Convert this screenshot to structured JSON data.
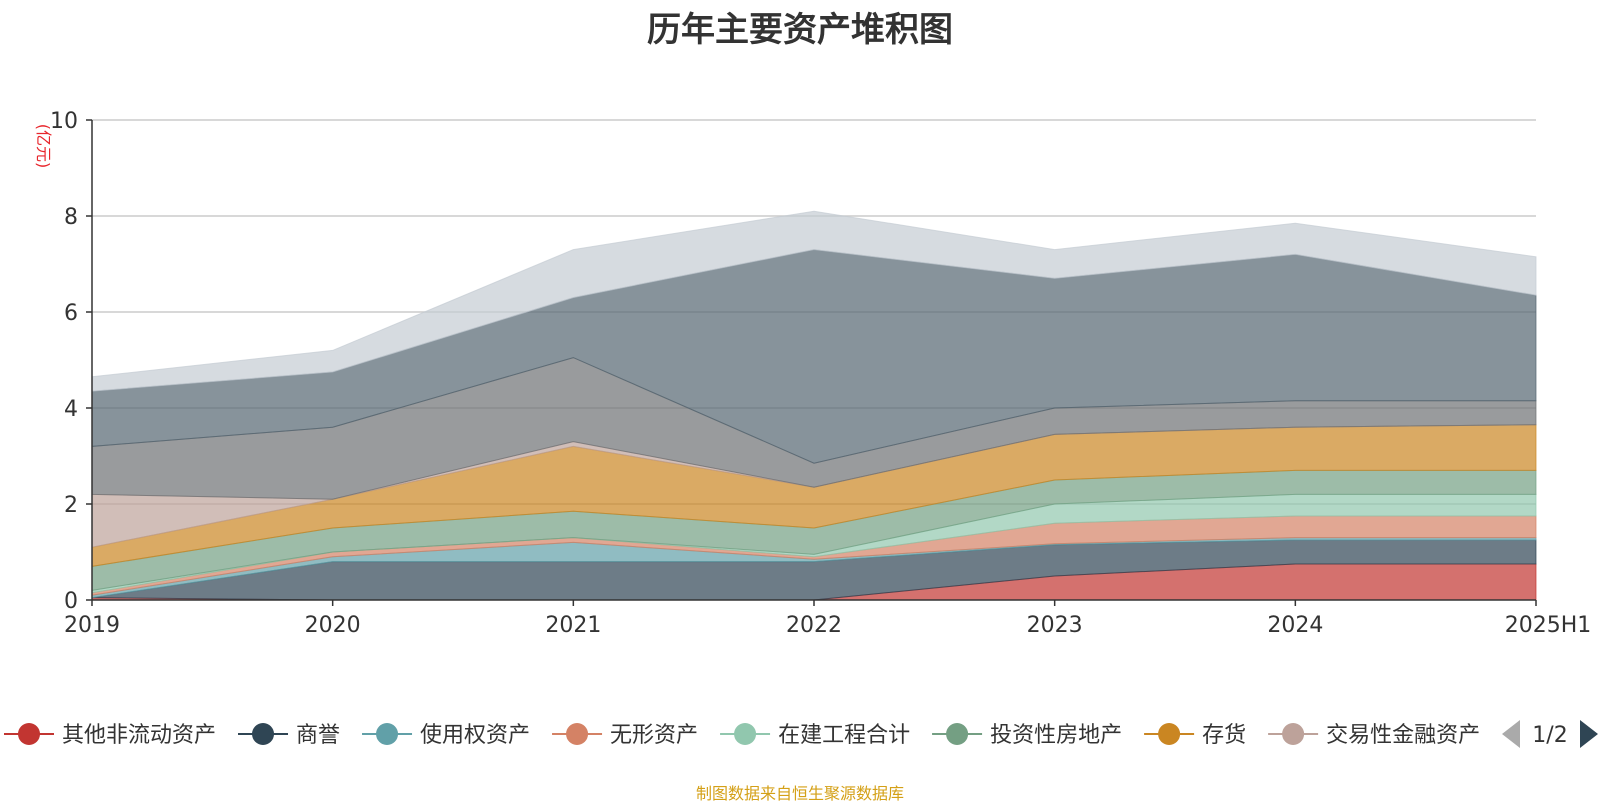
{
  "chart_data": {
    "type": "area",
    "stacked": true,
    "title": "历年主要资产堆积图",
    "ylabel": "(亿元)",
    "ylim": [
      0,
      10
    ],
    "yticks": [
      0,
      2,
      4,
      6,
      8,
      10
    ],
    "categories": [
      "2019",
      "2020",
      "2021",
      "2022",
      "2023",
      "2024",
      "2025H1"
    ],
    "grid": true,
    "legend_position": "bottom",
    "series": [
      {
        "name": "其他非流动资产",
        "color": "#c23531",
        "values": [
          0.05,
          0.0,
          0.0,
          0.0,
          0.5,
          0.75,
          0.75
        ]
      },
      {
        "name": "商誉",
        "color": "#2f4554",
        "values": [
          0.0,
          0.8,
          0.8,
          0.8,
          0.65,
          0.5,
          0.5
        ]
      },
      {
        "name": "使用权资产",
        "color": "#61a0a8",
        "values": [
          0.05,
          0.1,
          0.4,
          0.05,
          0.02,
          0.05,
          0.05
        ]
      },
      {
        "name": "无形资产",
        "color": "#d48265",
        "values": [
          0.05,
          0.1,
          0.1,
          0.05,
          0.43,
          0.45,
          0.45
        ]
      },
      {
        "name": "在建工程合计",
        "color": "#91c7ae",
        "values": [
          0.05,
          0.0,
          0.0,
          0.05,
          0.4,
          0.45,
          0.45
        ]
      },
      {
        "name": "投资性房地产",
        "color": "#749f83",
        "values": [
          0.5,
          0.5,
          0.55,
          0.55,
          0.5,
          0.5,
          0.5
        ]
      },
      {
        "name": "存货",
        "color": "#ca8622",
        "values": [
          0.4,
          0.6,
          1.35,
          0.85,
          0.95,
          0.9,
          0.95
        ]
      },
      {
        "name": "交易性金融资产",
        "color": "#bda29a",
        "values": [
          1.1,
          0.0,
          0.1,
          0.0,
          0.0,
          0.0,
          0.0
        ]
      },
      {
        "name": "",
        "color": "#6e7074",
        "values": [
          1.0,
          1.5,
          1.75,
          0.5,
          0.55,
          0.55,
          0.5
        ]
      },
      {
        "name": "",
        "color": "#546570",
        "values": [
          1.15,
          1.15,
          1.25,
          4.45,
          2.7,
          3.05,
          2.2
        ]
      },
      {
        "name": "",
        "color": "#c4ccd3",
        "values": [
          0.3,
          0.45,
          1.0,
          0.8,
          0.6,
          0.65,
          0.8
        ]
      }
    ]
  },
  "legend": {
    "pager": "1/2"
  },
  "source_note": "制图数据来自恒生聚源数据库"
}
